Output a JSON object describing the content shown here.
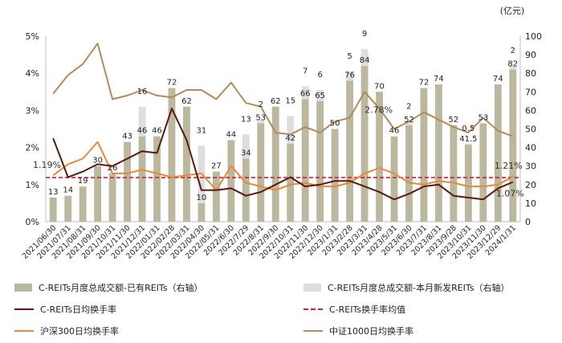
{
  "chart_data": {
    "type": "bar+line",
    "unit_right": "(亿元)",
    "categories": [
      "2021/06/30",
      "2021/07/31",
      "2021/08/31",
      "2021/09/30",
      "2021/10/31",
      "2021/11/30",
      "2021/12/31",
      "2022/01/31",
      "2022/02/28",
      "2022/03/31",
      "2022/04/30",
      "2022/05/31",
      "2022/6/30",
      "2022/7/29",
      "2022/8/31",
      "2022/9/30",
      "2022/10/31",
      "2022/11/30",
      "2022/12/30",
      "2023/1/31",
      "2023/2/28",
      "2023/3/31",
      "2023/4/28",
      "2023/5/31",
      "2023/6/30",
      "2023/7/31",
      "2023/8/31",
      "2023/9/28",
      "2023/10/31",
      "2023/11/30",
      "2023/12/29",
      "2024/1/31"
    ],
    "left_axis": {
      "ticks": [
        "0%",
        "1%",
        "2%",
        "3%",
        "4%",
        "5%"
      ],
      "range": [
        0,
        5
      ]
    },
    "right_axis": {
      "ticks": [
        "0",
        "10",
        "20",
        "30",
        "40",
        "50",
        "60",
        "70",
        "80",
        "90",
        "100"
      ],
      "range": [
        0,
        100
      ]
    },
    "bars_existing": {
      "name": "C-REITs月度总成交额-已有REITs（右轴）",
      "values": [
        13,
        14,
        19,
        30,
        26,
        43,
        46,
        46,
        72,
        62,
        10,
        27,
        44,
        34,
        53,
        62,
        42,
        66,
        65,
        50,
        76,
        84,
        70,
        46,
        52,
        72,
        74,
        52,
        41.5,
        53,
        74,
        82
      ],
      "labels": [
        "13",
        "14",
        "19",
        "30",
        "26",
        "43",
        "46",
        "46",
        "72",
        "62",
        "10",
        "27",
        "44",
        "34",
        "53",
        "62",
        "42",
        "66",
        "65",
        "50",
        "76",
        "84",
        "70",
        "46",
        "52",
        "72",
        "74",
        "52",
        "41.5",
        "53",
        "74",
        "82"
      ]
    },
    "bars_new": {
      "name": "C-REITs月度总成交额-本月新发REITs（右轴）",
      "values": [
        0,
        0,
        0,
        0,
        0,
        0,
        16,
        0,
        0,
        0,
        31,
        0,
        0,
        13,
        2,
        0,
        15,
        7,
        6,
        0,
        5,
        9,
        0,
        0,
        2,
        0,
        0,
        0,
        0.5,
        0,
        0,
        2
      ],
      "labels": [
        "",
        "",
        "",
        "",
        "",
        "",
        "16",
        "",
        "",
        "",
        "31",
        "",
        "",
        "13",
        "2",
        "",
        "15",
        "7",
        "6",
        "",
        "5",
        "9",
        "",
        "",
        "2",
        "",
        "",
        "",
        "0.5",
        "",
        "",
        "2"
      ]
    },
    "line_creits": {
      "name": "C-REITs日均换手率",
      "values": [
        2.25,
        1.2,
        1.35,
        1.55,
        1.5,
        1.7,
        1.9,
        1.85,
        3.05,
        2.2,
        0.85,
        0.85,
        0.9,
        0.7,
        0.8,
        1.0,
        1.2,
        0.95,
        1.0,
        1.1,
        1.1,
        0.95,
        0.8,
        0.6,
        0.75,
        0.95,
        1.0,
        0.7,
        0.65,
        0.6,
        0.9,
        1.07
      ]
    },
    "line_hs300": {
      "name": "沪深300日均换手率",
      "values": [
        1.25,
        1.55,
        1.7,
        2.15,
        1.3,
        1.3,
        1.4,
        1.3,
        1.2,
        1.25,
        1.3,
        0.85,
        1.5,
        1.05,
        0.95,
        0.85,
        1.0,
        1.05,
        0.95,
        0.95,
        1.05,
        1.3,
        1.45,
        1.3,
        1.05,
        1.0,
        1.1,
        1.05,
        0.95,
        0.95,
        1.0,
        1.21
      ]
    },
    "line_csi1000": {
      "name": "中证1000日均换手率",
      "values": [
        3.45,
        3.95,
        4.25,
        4.8,
        3.3,
        3.4,
        3.55,
        3.4,
        3.35,
        3.55,
        3.55,
        3.3,
        3.75,
        3.2,
        3.1,
        2.4,
        2.35,
        2.55,
        2.4,
        2.7,
        2.8,
        3.5,
        3.05,
        2.5,
        2.7,
        2.95,
        2.75,
        2.55,
        2.4,
        2.8,
        2.45,
        2.3
      ]
    },
    "avg_line": {
      "name": "C-REITs换手率均值",
      "value": 1.19
    },
    "annotations": {
      "avg_left": "1.19%",
      "hs300_end": "1.21%",
      "creits_end": "1.07%",
      "csi1000_mid": "2.78%"
    },
    "colors": {
      "bar_existing": "#bcb8a0",
      "bar_new": "#dedede",
      "line_creits": "#5a1a10",
      "line_hs300": "#e8883a",
      "line_csi1000": "#b48a58",
      "avg_line": "#c0272d",
      "axis": "#bfbfbf"
    }
  }
}
